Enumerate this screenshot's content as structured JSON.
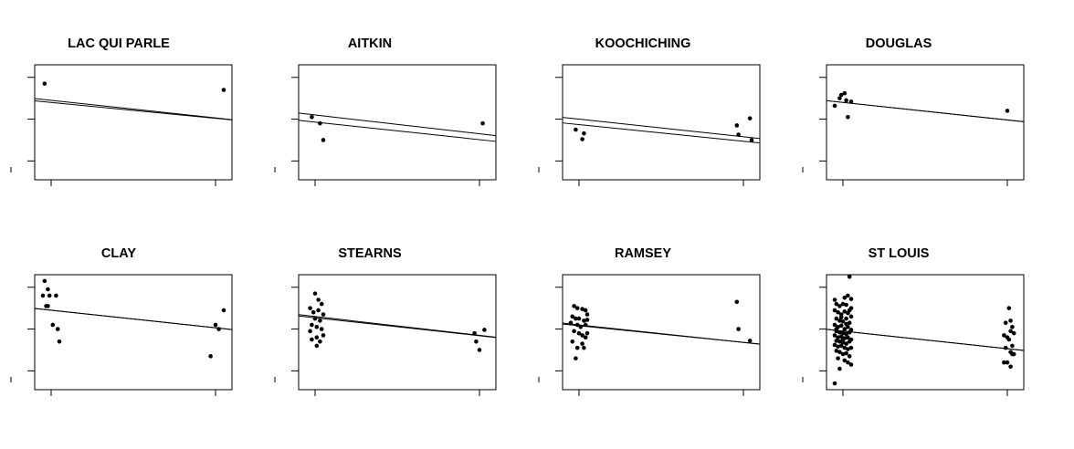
{
  "chart_data": [
    {
      "type": "scatter",
      "title": "LAC QUI PARLE",
      "xlim": [
        -0.1,
        1.1
      ],
      "ylim": [
        -0.45,
        2.3
      ],
      "lines": [
        {
          "intercept": 1.45,
          "slope": -0.42
        },
        {
          "intercept": 1.4,
          "slope": -0.38
        }
      ],
      "points": [
        [
          -0.04,
          1.85
        ],
        [
          1.05,
          1.7
        ]
      ]
    },
    {
      "type": "scatter",
      "title": "AITKIN",
      "xlim": [
        -0.1,
        1.1
      ],
      "ylim": [
        -0.45,
        2.3
      ],
      "lines": [
        {
          "intercept": 1.1,
          "slope": -0.45
        },
        {
          "intercept": 0.93,
          "slope": -0.42
        }
      ],
      "points": [
        [
          -0.02,
          1.05
        ],
        [
          0.03,
          0.9
        ],
        [
          0.05,
          0.5
        ],
        [
          1.02,
          0.9
        ]
      ]
    },
    {
      "type": "scatter",
      "title": "KOOCHICHING",
      "xlim": [
        -0.1,
        1.1
      ],
      "ylim": [
        -0.45,
        2.3
      ],
      "lines": [
        {
          "intercept": 1.0,
          "slope": -0.42
        },
        {
          "intercept": 0.87,
          "slope": -0.4
        }
      ],
      "points": [
        [
          -0.02,
          0.75
        ],
        [
          0.02,
          0.52
        ],
        [
          0.03,
          0.66
        ],
        [
          0.96,
          0.85
        ],
        [
          0.97,
          0.63
        ],
        [
          1.04,
          1.02
        ],
        [
          1.05,
          0.5
        ]
      ]
    },
    {
      "type": "scatter",
      "title": "DOUGLAS",
      "xlim": [
        -0.1,
        1.1
      ],
      "ylim": [
        -0.45,
        2.3
      ],
      "lines": [
        {
          "intercept": 1.4,
          "slope": -0.42
        },
        {
          "intercept": 1.4,
          "slope": -0.42
        }
      ],
      "points": [
        [
          -0.05,
          1.32
        ],
        [
          -0.02,
          1.5
        ],
        [
          -0.01,
          1.58
        ],
        [
          0.01,
          1.62
        ],
        [
          0.02,
          1.45
        ],
        [
          0.03,
          1.05
        ],
        [
          0.05,
          1.42
        ],
        [
          1.0,
          1.2
        ]
      ]
    },
    {
      "type": "scatter",
      "title": "CLAY",
      "xlim": [
        -0.1,
        1.1
      ],
      "ylim": [
        -0.45,
        2.3
      ],
      "lines": [
        {
          "intercept": 1.45,
          "slope": -0.42
        },
        {
          "intercept": 1.45,
          "slope": -0.42
        }
      ],
      "points": [
        [
          -0.04,
          2.15
        ],
        [
          -0.02,
          1.95
        ],
        [
          -0.05,
          1.8
        ],
        [
          -0.01,
          1.8
        ],
        [
          0.03,
          1.8
        ],
        [
          -0.03,
          1.55
        ],
        [
          -0.02,
          1.55
        ],
        [
          0.01,
          1.1
        ],
        [
          0.04,
          1.0
        ],
        [
          0.05,
          0.7
        ],
        [
          0.97,
          0.35
        ],
        [
          1.0,
          1.1
        ],
        [
          1.02,
          1.0
        ],
        [
          1.05,
          1.45
        ]
      ]
    },
    {
      "type": "scatter",
      "title": "STEARNS",
      "xlim": [
        -0.1,
        1.1
      ],
      "ylim": [
        -0.45,
        2.3
      ],
      "lines": [
        {
          "intercept": 1.3,
          "slope": -0.45
        },
        {
          "intercept": 1.27,
          "slope": -0.43
        }
      ],
      "points": [
        [
          0.0,
          1.85
        ],
        [
          0.02,
          1.7
        ],
        [
          0.04,
          1.6
        ],
        [
          -0.03,
          1.5
        ],
        [
          -0.01,
          1.4
        ],
        [
          0.02,
          1.45
        ],
        [
          0.05,
          1.35
        ],
        [
          0.0,
          1.25
        ],
        [
          0.03,
          1.2
        ],
        [
          -0.02,
          1.1
        ],
        [
          0.01,
          1.05
        ],
        [
          0.04,
          1.0
        ],
        [
          -0.03,
          0.95
        ],
        [
          0.01,
          0.8
        ],
        [
          -0.02,
          0.75
        ],
        [
          0.03,
          0.7
        ],
        [
          0.05,
          0.85
        ],
        [
          0.01,
          0.6
        ],
        [
          0.97,
          0.9
        ],
        [
          0.98,
          0.7
        ],
        [
          1.0,
          0.5
        ],
        [
          1.03,
          0.98
        ]
      ]
    },
    {
      "type": "scatter",
      "title": "RAMSEY",
      "xlim": [
        -0.1,
        1.1
      ],
      "ylim": [
        -0.45,
        2.3
      ],
      "lines": [
        {
          "intercept": 1.1,
          "slope": -0.42
        },
        {
          "intercept": 1.08,
          "slope": -0.4
        }
      ],
      "points": [
        [
          -0.03,
          1.55
        ],
        [
          -0.01,
          1.5
        ],
        [
          0.02,
          1.48
        ],
        [
          0.04,
          1.45
        ],
        [
          0.05,
          1.35
        ],
        [
          -0.04,
          1.3
        ],
        [
          -0.02,
          1.25
        ],
        [
          0.0,
          1.25
        ],
        [
          0.03,
          1.2
        ],
        [
          0.05,
          1.22
        ],
        [
          -0.05,
          1.15
        ],
        [
          -0.01,
          1.1
        ],
        [
          0.01,
          1.05
        ],
        [
          0.04,
          1.1
        ],
        [
          -0.03,
          0.95
        ],
        [
          0.0,
          0.9
        ],
        [
          0.02,
          0.85
        ],
        [
          0.05,
          0.9
        ],
        [
          -0.04,
          0.7
        ],
        [
          -0.01,
          0.55
        ],
        [
          0.03,
          0.55
        ],
        [
          0.02,
          0.65
        ],
        [
          -0.02,
          0.3
        ],
        [
          0.04,
          0.8
        ],
        [
          0.96,
          1.65
        ],
        [
          0.97,
          1.0
        ],
        [
          1.04,
          0.72
        ]
      ]
    },
    {
      "type": "scatter",
      "title": "ST LOUIS",
      "xlim": [
        -0.1,
        1.1
      ],
      "ylim": [
        -0.45,
        2.3
      ],
      "lines": [
        {
          "intercept": 0.95,
          "slope": -0.42
        },
        {
          "intercept": 0.95,
          "slope": -0.42
        }
      ],
      "points": [
        [
          0.04,
          2.25
        ],
        [
          0.03,
          1.8
        ],
        [
          -0.05,
          1.7
        ],
        [
          0.01,
          1.75
        ],
        [
          0.05,
          1.72
        ],
        [
          -0.04,
          1.6
        ],
        [
          -0.02,
          1.55
        ],
        [
          0.0,
          1.6
        ],
        [
          0.02,
          1.58
        ],
        [
          0.05,
          1.5
        ],
        [
          -0.05,
          1.45
        ],
        [
          -0.03,
          1.4
        ],
        [
          -0.01,
          1.35
        ],
        [
          0.01,
          1.42
        ],
        [
          0.03,
          1.38
        ],
        [
          0.05,
          1.3
        ],
        [
          -0.04,
          1.25
        ],
        [
          -0.02,
          1.2
        ],
        [
          0.0,
          1.18
        ],
        [
          0.02,
          1.25
        ],
        [
          0.04,
          1.15
        ],
        [
          -0.05,
          1.1
        ],
        [
          -0.03,
          1.05
        ],
        [
          -0.01,
          1.08
        ],
        [
          0.01,
          1.0
        ],
        [
          0.03,
          1.05
        ],
        [
          0.05,
          0.98
        ],
        [
          -0.04,
          0.95
        ],
        [
          -0.02,
          0.92
        ],
        [
          0.0,
          0.9
        ],
        [
          0.02,
          0.88
        ],
        [
          0.04,
          0.92
        ],
        [
          -0.05,
          0.85
        ],
        [
          -0.03,
          0.8
        ],
        [
          -0.01,
          0.82
        ],
        [
          0.01,
          0.78
        ],
        [
          0.03,
          0.8
        ],
        [
          0.05,
          0.75
        ],
        [
          -0.04,
          0.72
        ],
        [
          -0.02,
          0.7
        ],
        [
          0.0,
          0.68
        ],
        [
          0.02,
          0.65
        ],
        [
          0.04,
          0.7
        ],
        [
          -0.05,
          0.62
        ],
        [
          -0.03,
          0.58
        ],
        [
          -0.01,
          0.6
        ],
        [
          0.01,
          0.55
        ],
        [
          0.03,
          0.52
        ],
        [
          0.05,
          0.55
        ],
        [
          -0.04,
          0.48
        ],
        [
          -0.02,
          0.45
        ],
        [
          0.0,
          0.4
        ],
        [
          0.02,
          0.42
        ],
        [
          0.04,
          0.35
        ],
        [
          -0.03,
          0.3
        ],
        [
          0.01,
          0.25
        ],
        [
          0.03,
          0.2
        ],
        [
          0.05,
          0.15
        ],
        [
          -0.02,
          0.05
        ],
        [
          -0.04,
          1.0
        ],
        [
          0.02,
          1.12
        ],
        [
          -0.01,
          1.28
        ],
        [
          0.04,
          1.45
        ],
        [
          0.0,
          0.75
        ],
        [
          -0.05,
          -0.3
        ],
        [
          1.01,
          1.5
        ],
        [
          1.02,
          1.2
        ],
        [
          0.99,
          1.15
        ],
        [
          1.03,
          1.05
        ],
        [
          1.02,
          0.95
        ],
        [
          1.04,
          0.9
        ],
        [
          0.98,
          0.85
        ],
        [
          1.0,
          0.8
        ],
        [
          1.01,
          0.75
        ],
        [
          1.03,
          0.6
        ],
        [
          0.99,
          0.55
        ],
        [
          1.02,
          0.45
        ],
        [
          1.04,
          0.4
        ],
        [
          0.98,
          0.2
        ],
        [
          1.0,
          0.2
        ],
        [
          1.02,
          0.1
        ],
        [
          1.03,
          0.4
        ]
      ]
    }
  ]
}
